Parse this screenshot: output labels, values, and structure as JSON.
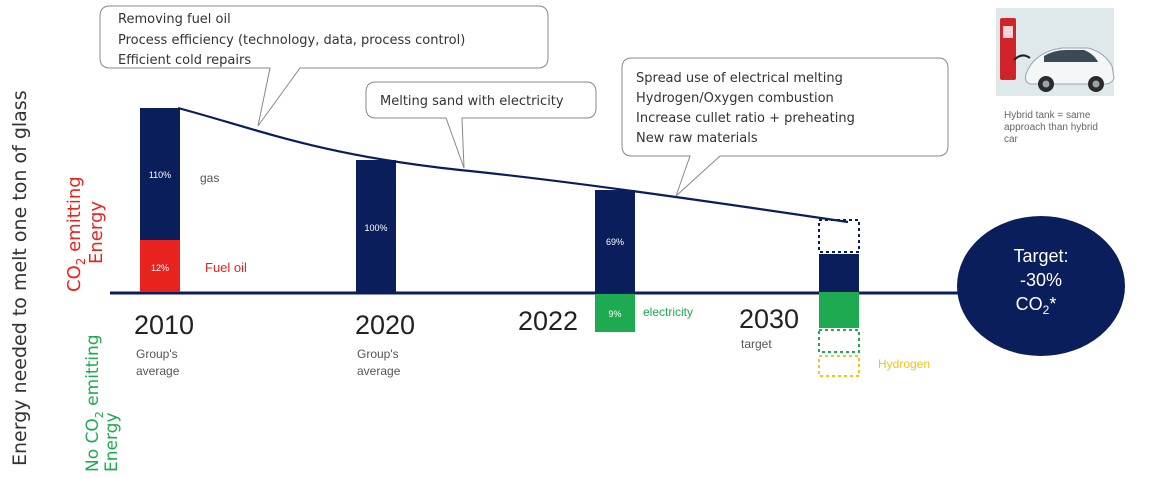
{
  "chart_data": {
    "type": "bar",
    "ylabel": "Energy needed to melt one ton of glass",
    "y_zones": {
      "co2_emitting": {
        "line1": "CO",
        "sub": "2",
        "line1_rest": " emitting",
        "line2": "Energy"
      },
      "no_co2_emitting": {
        "line1": "No CO",
        "sub": "2",
        "line1_rest": " emitting",
        "line2": "Energy"
      }
    },
    "categories": [
      {
        "year": "2010",
        "sub_line1": "Group's",
        "sub_line2": "average"
      },
      {
        "year": "2020",
        "sub_line1": "Group's",
        "sub_line2": "average"
      },
      {
        "year": "2022",
        "sub_line1": "",
        "sub_line2": ""
      },
      {
        "year": "2030",
        "sub_line1": "target",
        "sub_line2": ""
      }
    ],
    "series": [
      {
        "name": "gas",
        "color": "#0b1e5c",
        "values": [
          110,
          100,
          69,
          null
        ],
        "labels": [
          "110%",
          "100%",
          "69%",
          ""
        ]
      },
      {
        "name": "Fuel oil",
        "color": "#e8231e",
        "values": [
          12,
          0,
          0,
          0
        ],
        "labels": [
          "12%",
          "",
          "",
          ""
        ]
      },
      {
        "name": "electricity",
        "color": "#1eaa50",
        "values": [
          0,
          0,
          9,
          null
        ],
        "labels": [
          "",
          "",
          "9%",
          ""
        ]
      },
      {
        "name": "Hydrogen",
        "color": "#f0c419",
        "values": [
          0,
          0,
          0,
          null
        ],
        "labels": [
          "",
          "",
          "",
          ""
        ]
      }
    ],
    "callouts": [
      {
        "lines": [
          "Removing fuel oil",
          "Process efficiency (technology, data, process control)",
          "Efficient cold repairs"
        ]
      },
      {
        "lines": [
          "Melting sand with electricity"
        ]
      },
      {
        "lines": [
          "Spread use of electrical melting",
          "Hydrogen/Oxygen combustion",
          "Increase cullet ratio + preheating",
          "New raw materials"
        ]
      }
    ],
    "target": {
      "line1": "Target:",
      "line2": "-30%",
      "line3_main": "CO",
      "line3_sub": "2",
      "line3_rest": "*"
    },
    "hybrid_caption": [
      "Hybrid tank = same",
      "approach than hybrid",
      "car"
    ]
  },
  "colors": {
    "navy": "#0b1e5c",
    "red": "#e8231e",
    "green": "#1eaa50",
    "yellow": "#f0c419",
    "axis": "#0b1e5c",
    "target_fill": "#0b1e5c"
  },
  "icons": {
    "hybrid_car": "hybrid-car-charging-icon"
  }
}
